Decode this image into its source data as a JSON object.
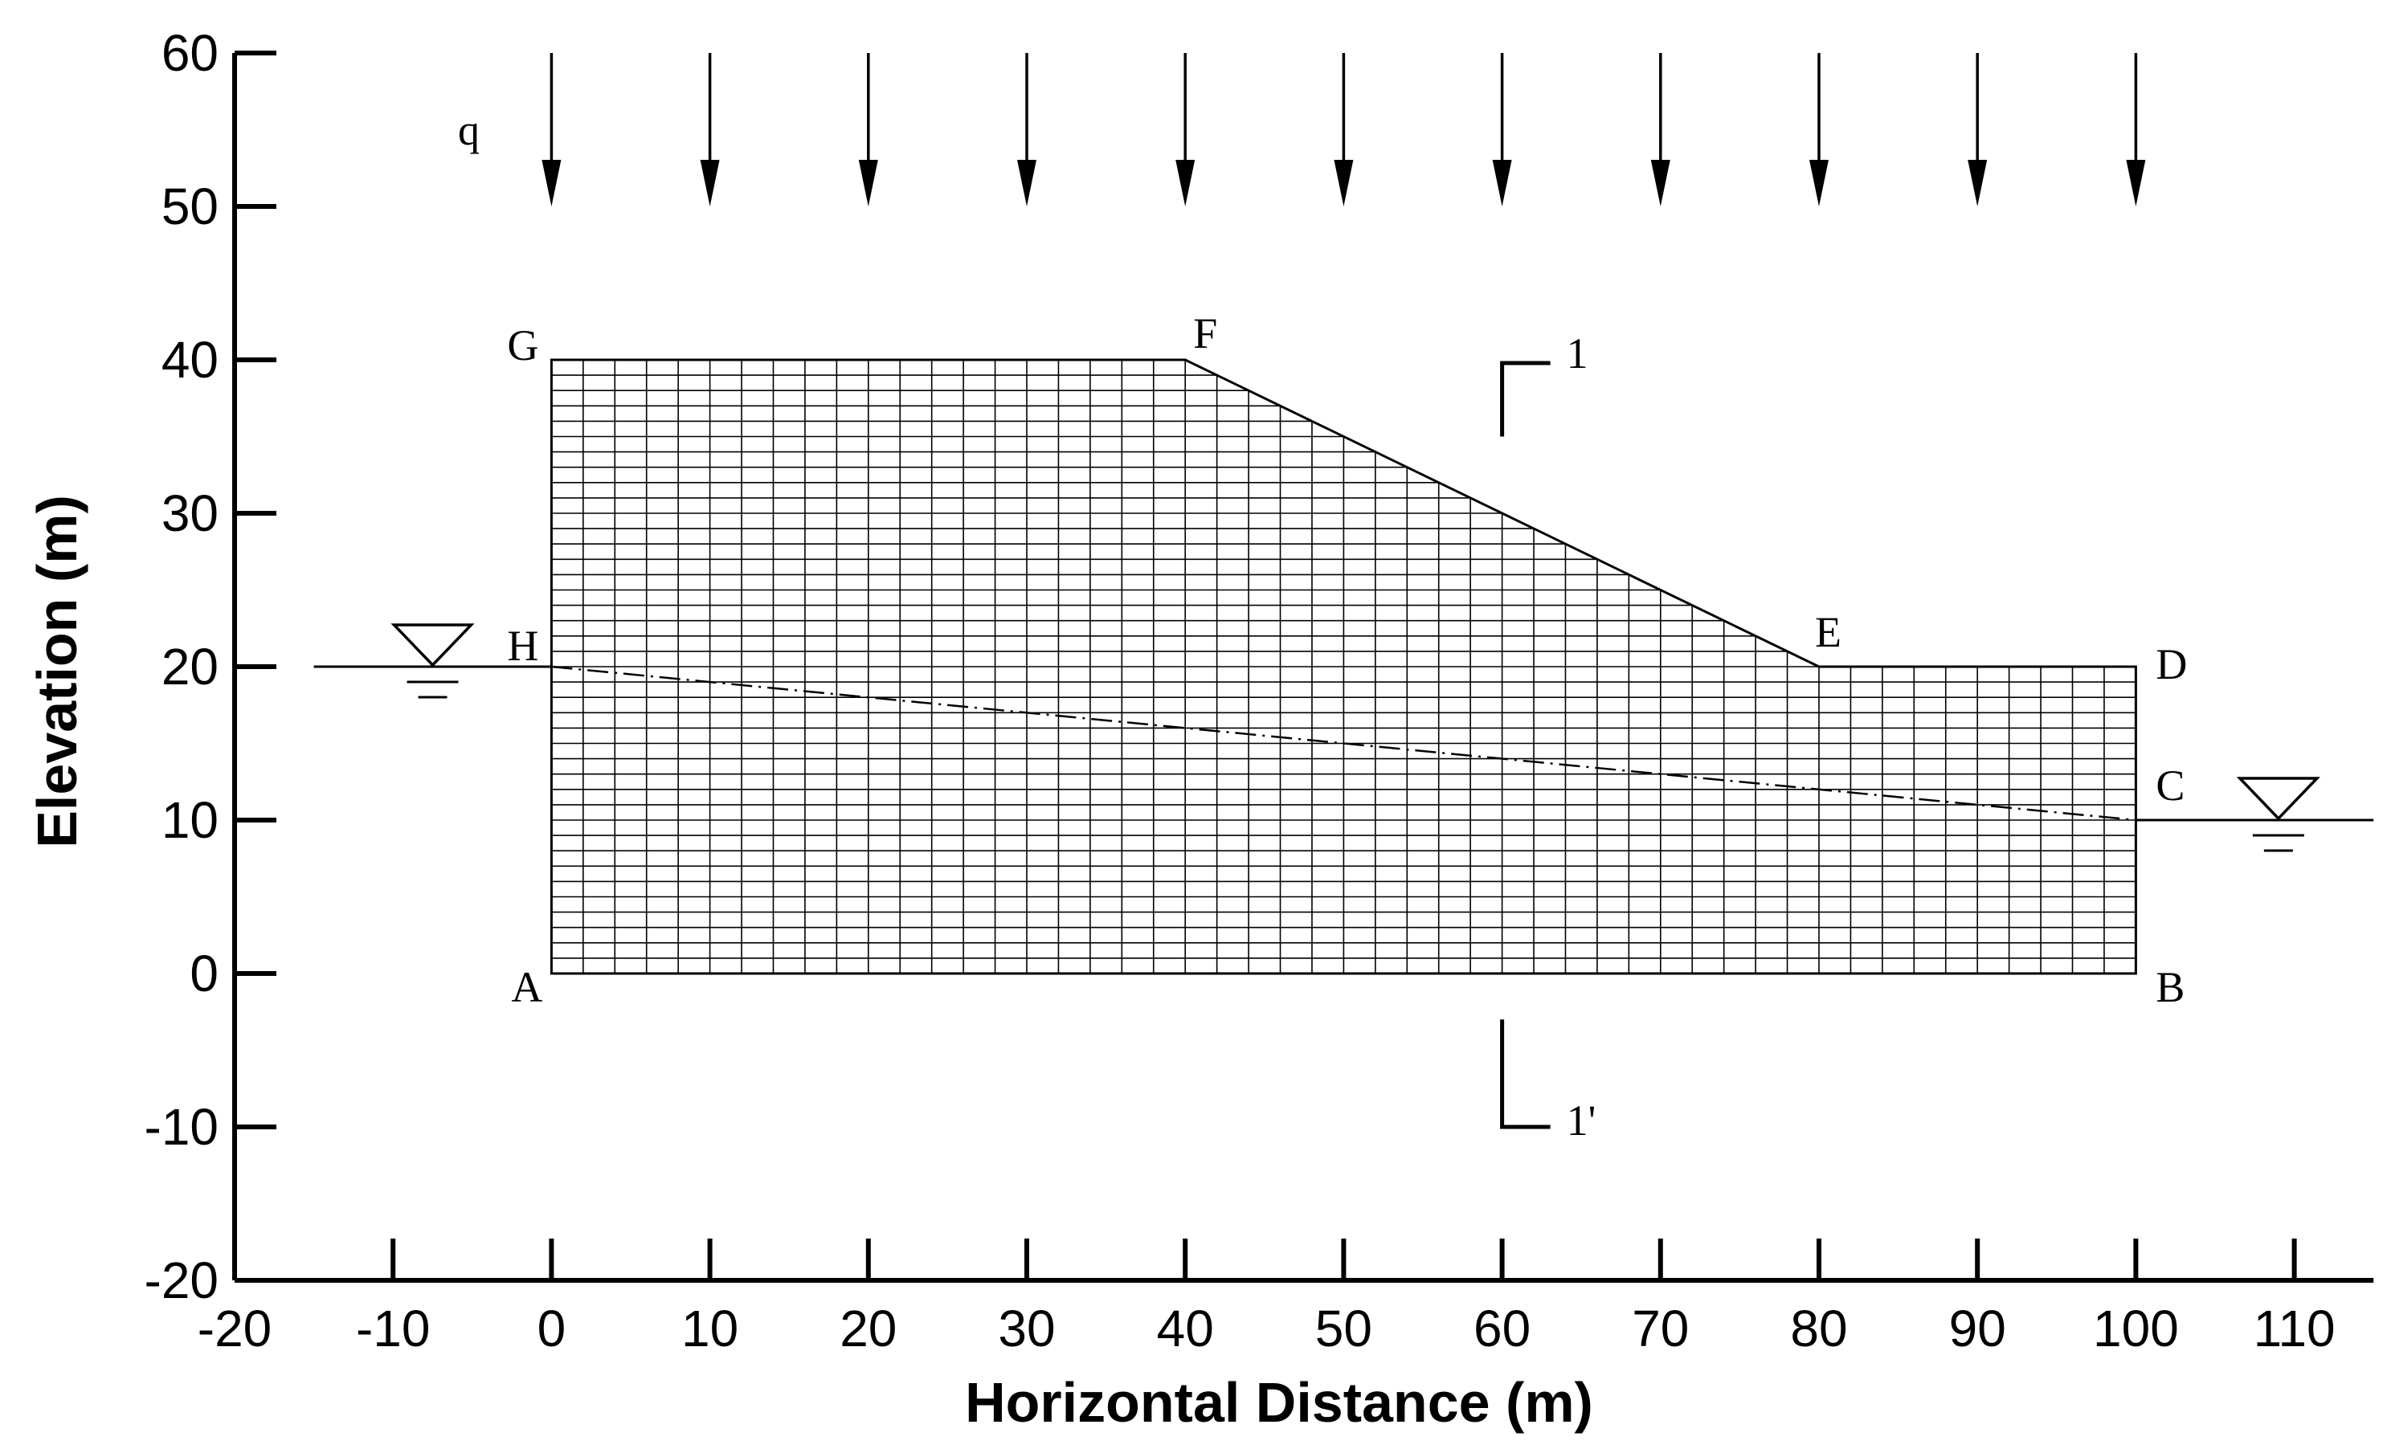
{
  "chart_data": {
    "type": "diagram",
    "xlabel": "Horizontal Distance (m)",
    "ylabel": "Elevation (m)",
    "xlim": [
      -20,
      115
    ],
    "ylim": [
      -20,
      60
    ],
    "x_ticks": [
      -20,
      -10,
      0,
      10,
      20,
      30,
      40,
      50,
      60,
      70,
      80,
      90,
      100,
      110
    ],
    "y_ticks": [
      -20,
      -10,
      0,
      10,
      20,
      30,
      40,
      50,
      60
    ],
    "slope_outline": [
      [
        0,
        0
      ],
      [
        100,
        0
      ],
      [
        100,
        20
      ],
      [
        80,
        20
      ],
      [
        40,
        40
      ],
      [
        0,
        40
      ]
    ],
    "points": [
      {
        "name": "A",
        "x": 0,
        "y": 0
      },
      {
        "name": "B",
        "x": 100,
        "y": 0
      },
      {
        "name": "C",
        "x": 100,
        "y": 10
      },
      {
        "name": "D",
        "x": 100,
        "y": 20
      },
      {
        "name": "E",
        "x": 80,
        "y": 20
      },
      {
        "name": "F",
        "x": 40,
        "y": 40
      },
      {
        "name": "G",
        "x": 0,
        "y": 40
      },
      {
        "name": "H",
        "x": 0,
        "y": 20
      }
    ],
    "mesh": {
      "dx": 2,
      "dy": 1
    },
    "phreatic_line": [
      [
        0,
        20
      ],
      [
        100,
        10
      ]
    ],
    "water_levels": [
      {
        "x_from": -15,
        "x_to": 0,
        "y": 20,
        "symbol_x": -7.5
      },
      {
        "x_from": 100,
        "x_to": 115,
        "y": 10,
        "symbol_x": 109
      }
    ],
    "load": {
      "label": "q",
      "x_positions": [
        0,
        10,
        20,
        30,
        40,
        50,
        60,
        70,
        80,
        90,
        100
      ],
      "y_top": 60,
      "y_bottom": 50
    },
    "section": {
      "x": 60,
      "top_label": "1",
      "bottom_label": "1'",
      "top_y": [
        40,
        35
      ],
      "bottom_y": [
        -3,
        -10
      ]
    }
  }
}
